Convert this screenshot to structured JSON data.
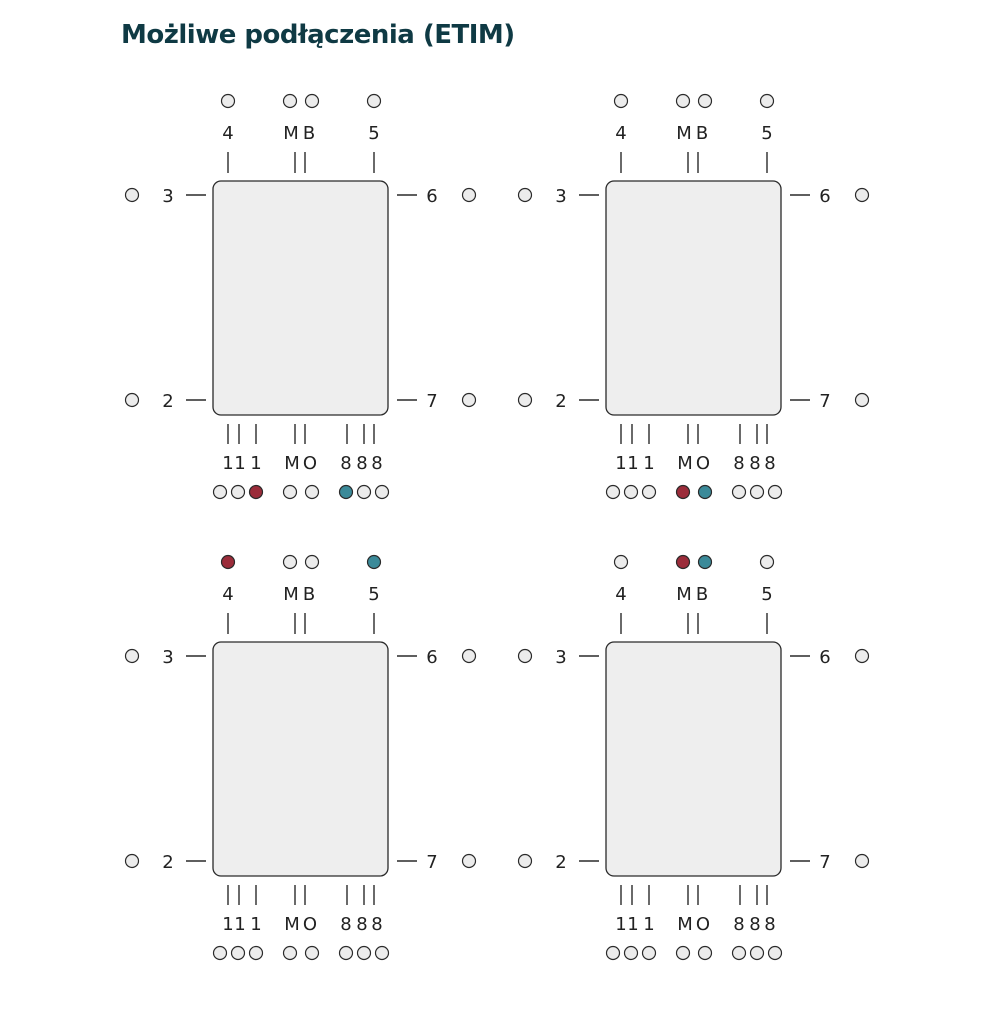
{
  "title": "Możliwe podłączenia (ETIM)",
  "colors": {
    "red": "#9b2c3a",
    "teal": "#3b8a99",
    "empty": "#ececec",
    "box": "#eeeeee",
    "stroke": "#2a2a2a"
  },
  "labels": {
    "top": [
      "4",
      "M",
      "B",
      "5"
    ],
    "left_top": "3",
    "left_bottom": "2",
    "right_top": "6",
    "right_bottom": "7",
    "bottom": [
      "1",
      "1",
      "1",
      "M",
      "O",
      "8",
      "8",
      "8"
    ]
  },
  "diagrams": [
    {
      "top": [
        "empty",
        "empty",
        "empty",
        "empty"
      ],
      "bottom": [
        "empty",
        "empty",
        "red",
        "empty",
        "empty",
        "teal",
        "empty",
        "empty"
      ]
    },
    {
      "top": [
        "empty",
        "empty",
        "empty",
        "empty"
      ],
      "bottom": [
        "empty",
        "empty",
        "empty",
        "red",
        "teal",
        "empty",
        "empty",
        "empty"
      ]
    },
    {
      "top": [
        "red",
        "empty",
        "empty",
        "teal"
      ],
      "bottom": [
        "empty",
        "empty",
        "empty",
        "empty",
        "empty",
        "empty",
        "empty",
        "empty"
      ]
    },
    {
      "top": [
        "empty",
        "red",
        "teal",
        "empty"
      ],
      "bottom": [
        "empty",
        "empty",
        "empty",
        "empty",
        "empty",
        "empty",
        "empty",
        "empty"
      ]
    }
  ]
}
